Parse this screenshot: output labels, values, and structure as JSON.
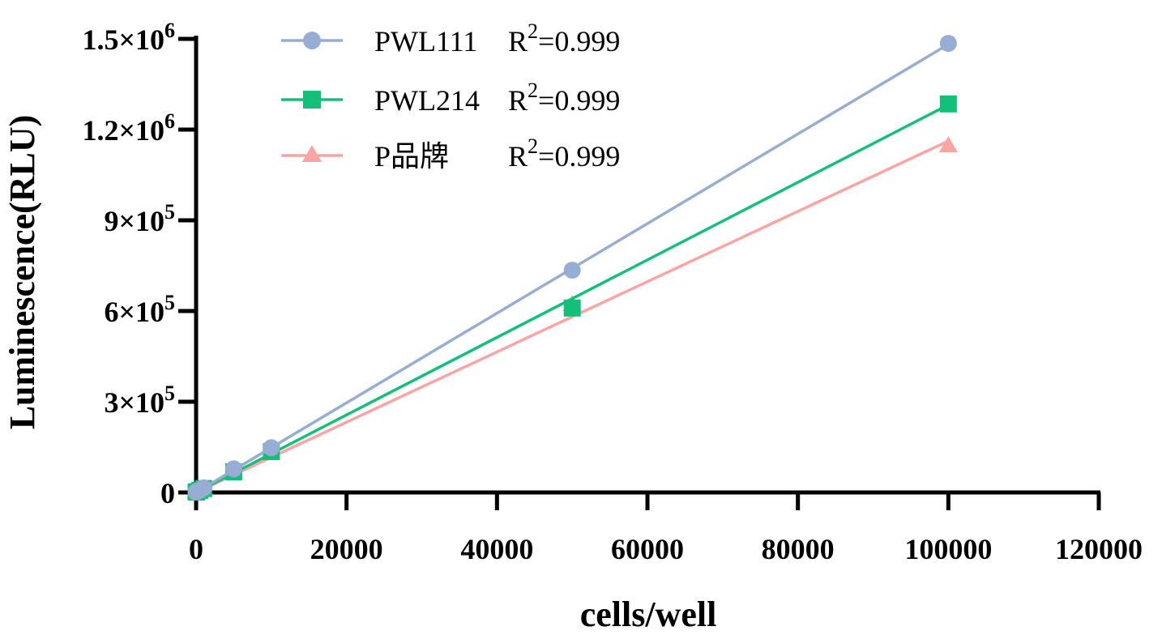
{
  "chart_data": {
    "type": "line",
    "xlabel": "cells/well",
    "ylabel": "Luminescence(RLU)",
    "xlim": [
      0,
      120000
    ],
    "ylim": [
      0,
      1500000
    ],
    "x_ticks": [
      0,
      20000,
      40000,
      60000,
      80000,
      100000,
      120000
    ],
    "x_tick_labels": [
      "0",
      "20000",
      "40000",
      "60000",
      "80000",
      "100000",
      "120000"
    ],
    "y_ticks": [
      0,
      300000,
      600000,
      900000,
      1200000,
      1500000
    ],
    "y_tick_labels": [
      {
        "mantissa": "0",
        "exp": ""
      },
      {
        "mantissa": "3×10",
        "exp": "5"
      },
      {
        "mantissa": "6×10",
        "exp": "5"
      },
      {
        "mantissa": "9×10",
        "exp": "5"
      },
      {
        "mantissa": "1.2×10",
        "exp": "6"
      },
      {
        "mantissa": "1.5×10",
        "exp": "6"
      }
    ],
    "grid": false,
    "legend_position": "top-left",
    "series": [
      {
        "name": "PWL111",
        "r2_label": "R",
        "r2_exp": "2",
        "r2_value": "=0.999",
        "color": "#97add3",
        "marker": "circle",
        "x": [
          0,
          100,
          500,
          1000,
          5000,
          10000,
          50000,
          100000
        ],
        "y": [
          1500,
          3000,
          8000,
          15000,
          78000,
          148000,
          735000,
          1485000
        ],
        "fit": [
          0,
          1482000
        ]
      },
      {
        "name": "PWL214",
        "r2_label": "R",
        "r2_exp": "2",
        "r2_value": "=0.999",
        "color": "#13c07a",
        "marker": "square",
        "x": [
          0,
          100,
          500,
          1000,
          5000,
          10000,
          50000,
          100000
        ],
        "y": [
          1000,
          2500,
          7000,
          13000,
          68000,
          135000,
          610000,
          1285000
        ],
        "fit": [
          0,
          1282000
        ]
      },
      {
        "name": "P品牌",
        "r2_label": "R",
        "r2_exp": "2",
        "r2_value": "=0.999",
        "color": "#fba4a4",
        "marker": "triangle",
        "x": [
          0,
          100,
          500,
          1000,
          5000,
          10000,
          50000,
          100000
        ],
        "y": [
          1000,
          2000,
          6500,
          12500,
          65000,
          130000,
          620000,
          1145000
        ],
        "fit": [
          0,
          1162000
        ]
      }
    ]
  }
}
